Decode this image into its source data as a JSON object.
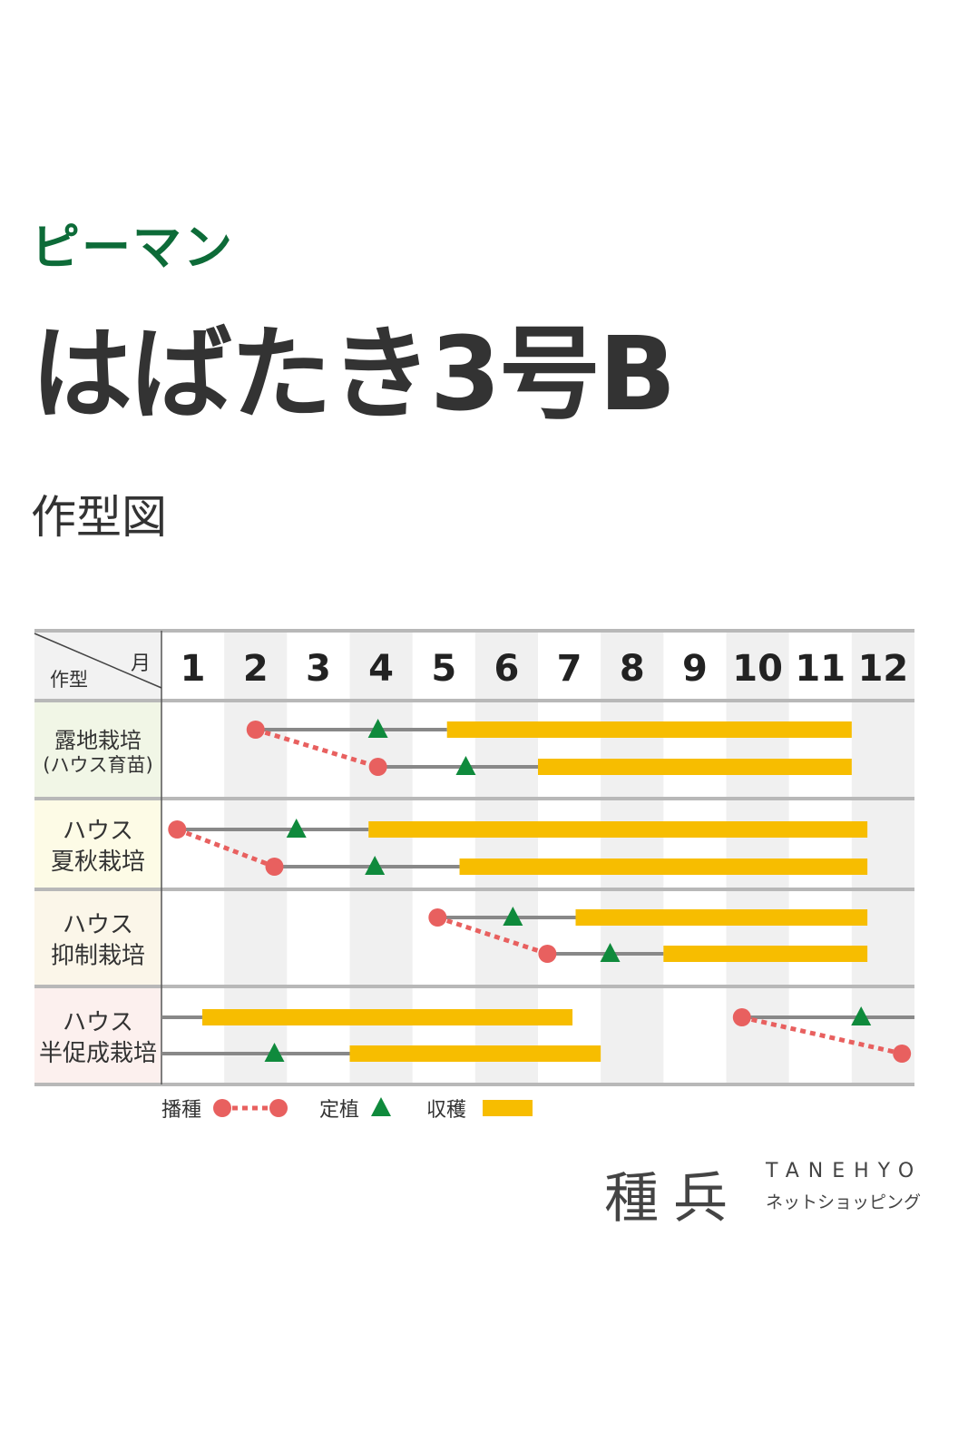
{
  "header": {
    "category": "ピーマン",
    "product_name": "はばたき3号B",
    "section_title": "作型図"
  },
  "logo": {
    "mark": "種兵",
    "name_en": "TANEHYO",
    "name_jp": "ネットショッピング"
  },
  "colors": {
    "sowing": "#e8605f",
    "transplant": "#0f8a3c",
    "harvest": "#f7bd00",
    "growth_line": "#888888",
    "shaded_month": "#f0f0f0",
    "header_bg": "#f2f2f2"
  },
  "chart_data": {
    "type": "gantt",
    "corner_label_top": "月",
    "corner_label_bottom": "作型",
    "months": [
      "1",
      "2",
      "3",
      "4",
      "5",
      "6",
      "7",
      "8",
      "9",
      "10",
      "11",
      "12"
    ],
    "shaded_months": [
      2,
      4,
      6,
      8,
      10,
      12
    ],
    "rows": [
      {
        "label_line1": "露地栽培",
        "label_line2": "(ハウス育苗)",
        "bg": "#f1f6e6",
        "lines": [
          {
            "growth_line": [
              2.5,
              5.55
            ],
            "sow": 2.5,
            "transplant": 4.45,
            "harvest": [
              5.55,
              12.0
            ]
          },
          {
            "growth_line": [
              4.45,
              7.0
            ],
            "sow": 4.45,
            "transplant": 5.85,
            "harvest": [
              7.0,
              12.0
            ]
          }
        ]
      },
      {
        "label_line1": "ハウス",
        "label_line2": "夏秋栽培",
        "bg": "#fdfbe6",
        "lines": [
          {
            "growth_line": [
              1.25,
              4.3
            ],
            "sow": 1.25,
            "transplant": 3.15,
            "harvest": [
              4.3,
              12.25
            ]
          },
          {
            "growth_line": [
              2.8,
              5.75
            ],
            "sow": 2.8,
            "transplant": 4.4,
            "harvest": [
              5.75,
              12.25
            ]
          }
        ]
      },
      {
        "label_line1": "ハウス",
        "label_line2": "抑制栽培",
        "bg": "#fbf6e9",
        "lines": [
          {
            "growth_line": [
              5.4,
              7.6
            ],
            "sow": 5.4,
            "transplant": 6.6,
            "harvest": [
              7.6,
              12.25
            ]
          },
          {
            "growth_line": [
              7.15,
              9.0
            ],
            "sow": 7.15,
            "transplant": 8.15,
            "harvest": [
              9.0,
              12.25
            ]
          }
        ]
      },
      {
        "label_line1": "ハウス",
        "label_line2": "半促成栽培",
        "bg": "#fcf0ee",
        "lines": [
          {
            "growth_line": [
              1.0,
              1.65
            ],
            "harvest": [
              1.65,
              7.55
            ],
            "growth_line_2": [
              10.25,
              13.0
            ],
            "sow": 10.25,
            "transplant": 12.15
          },
          {
            "growth_line": [
              1.0,
              4.0
            ],
            "transplant": 2.8,
            "harvest": [
              4.0,
              8.0
            ],
            "sow": 12.8
          }
        ]
      }
    ],
    "legend": [
      {
        "label": "播種",
        "marker": "circle-dotted"
      },
      {
        "label": "定植",
        "marker": "triangle"
      },
      {
        "label": "収穫",
        "marker": "bar"
      }
    ],
    "legend_position": "bottom"
  }
}
